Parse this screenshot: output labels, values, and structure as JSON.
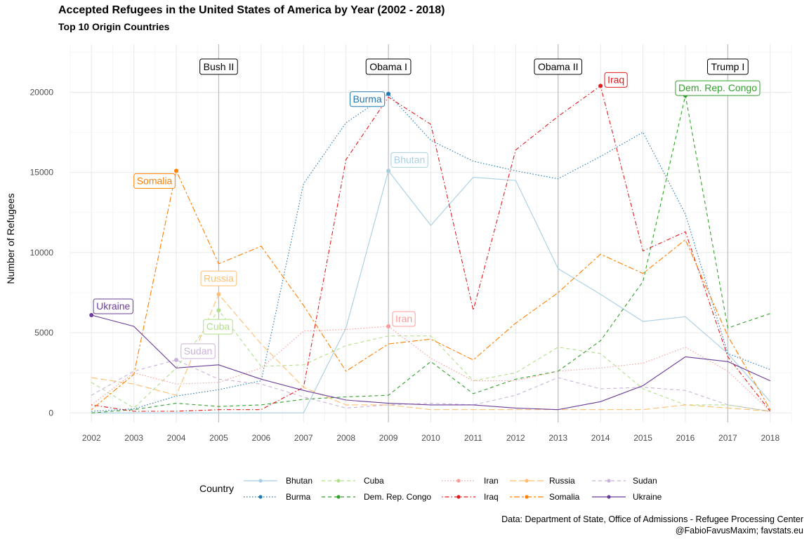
{
  "chart_data": {
    "type": "line",
    "title": "Accepted Refugees in the United States of America by Year (2002 - 2018)",
    "subtitle": "Top 10 Origin Countries",
    "xlabel": "",
    "ylabel": "Number of Refugees",
    "legend_title": "Country",
    "caption_lines": [
      "Data: Department of State, Office of Admissions - Refugee Processing Center",
      "@FabioFavusMaxim; favstats.eu"
    ],
    "x": [
      2002,
      2003,
      2004,
      2005,
      2006,
      2007,
      2008,
      2009,
      2010,
      2011,
      2012,
      2013,
      2014,
      2015,
      2016,
      2017,
      2018
    ],
    "xlim": [
      2001.5,
      2018.5
    ],
    "ylim": [
      -600,
      23000
    ],
    "y_ticks": [
      0,
      5000,
      10000,
      15000,
      20000
    ],
    "grid": true,
    "legend_position": "bottom",
    "eras": [
      {
        "label": "Bush II",
        "year": 2005
      },
      {
        "label": "Obama I",
        "year": 2009
      },
      {
        "label": "Obama II",
        "year": 2013
      },
      {
        "label": "Trump I",
        "year": 2017
      }
    ],
    "series": [
      {
        "name": "Bhutan",
        "color": "#A6CEE3",
        "dash": "solid",
        "values": [
          0,
          0,
          0,
          0,
          0,
          0,
          5300,
          15100,
          11700,
          14700,
          14500,
          9000,
          7400,
          5700,
          6000,
          3700,
          700
        ],
        "highlight_year": 2009
      },
      {
        "name": "Burma",
        "color": "#1F78B4",
        "dash": "dotted",
        "values": [
          100,
          250,
          1050,
          1450,
          2000,
          14300,
          18100,
          19900,
          17000,
          15700,
          15100,
          14600,
          16000,
          17500,
          12400,
          3700,
          2700
        ],
        "highlight_year": 2009
      },
      {
        "name": "Cuba",
        "color": "#B2DF8A",
        "dash": "dashed",
        "values": [
          1900,
          300,
          2800,
          6400,
          2900,
          3000,
          4200,
          4800,
          4800,
          2000,
          2500,
          4100,
          3700,
          1500,
          500,
          500,
          100
        ],
        "highlight_year": 2005
      },
      {
        "name": "Dem. Rep. Congo",
        "color": "#33A02C",
        "dash": "dashed",
        "values": [
          0,
          200,
          600,
          400,
          500,
          850,
          1000,
          1100,
          3200,
          1200,
          2100,
          2600,
          4500,
          8200,
          19800,
          5300,
          6200
        ],
        "highlight_year": 2016
      },
      {
        "name": "Iran",
        "color": "#FB9A99",
        "dash": "dotted",
        "values": [
          500,
          2500,
          1800,
          1900,
          2800,
          5100,
          5200,
          5400,
          3400,
          2000,
          2000,
          2600,
          2800,
          3100,
          4100,
          2600,
          100
        ],
        "highlight_year": 2009
      },
      {
        "name": "Iraq",
        "color": "#E31A1C",
        "dash": "dotdash",
        "values": [
          500,
          100,
          100,
          200,
          200,
          1600,
          15800,
          19700,
          18000,
          6400,
          16400,
          18500,
          20400,
          10100,
          11300,
          3500,
          100
        ],
        "highlight_year": 2014
      },
      {
        "name": "Russia",
        "color": "#FDBF6F",
        "dash": "longdash",
        "values": [
          2200,
          1800,
          1100,
          7400,
          4300,
          1600,
          500,
          500,
          200,
          200,
          200,
          200,
          200,
          200,
          500,
          300,
          100
        ],
        "highlight_year": 2005
      },
      {
        "name": "Somalia",
        "color": "#FF7F00",
        "dash": "twodash",
        "values": [
          200,
          2400,
          15100,
          9300,
          10400,
          6700,
          2600,
          4300,
          4600,
          3300,
          5600,
          7500,
          9900,
          8700,
          10800,
          4800,
          200
        ],
        "highlight_year": 2004
      },
      {
        "name": "Sudan",
        "color": "#CAB2D6",
        "dash": "dashed",
        "values": [
          1100,
          2600,
          3300,
          2100,
          1800,
          1000,
          300,
          500,
          600,
          500,
          1100,
          2200,
          1500,
          1600,
          1400,
          500,
          100
        ],
        "highlight_year": 2004
      },
      {
        "name": "Ukraine",
        "color": "#6A3D9A",
        "dash": "solid",
        "values": [
          6100,
          5400,
          2800,
          3000,
          2100,
          1400,
          800,
          600,
          500,
          500,
          300,
          200,
          700,
          1700,
          3500,
          3200,
          2000
        ],
        "highlight_year": 2002
      }
    ]
  }
}
